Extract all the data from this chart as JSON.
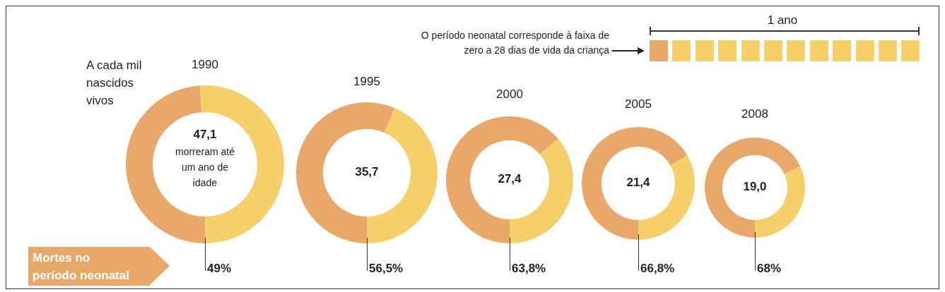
{
  "chart_data": [
    {
      "type": "donut",
      "title": "1990",
      "categories": [
        "Mortes no período neonatal",
        null
      ],
      "values": [
        49,
        51
      ],
      "colors": [
        "#e8a86a",
        "#f4cf6a"
      ],
      "value_labels": [
        "49%",
        null
      ],
      "annotations": [
        "47,1",
        "morreram até um ano de idade",
        "A cada mil nascidos vivos"
      ]
    },
    {
      "type": "donut",
      "title": "1995",
      "categories": [
        null,
        null
      ],
      "values": [
        56.5,
        43.5
      ],
      "colors": [
        "#e8a86a",
        "#f4cf6a"
      ],
      "value_labels": [
        "56,5%",
        null
      ],
      "annotations": [
        "35,7"
      ]
    },
    {
      "type": "donut",
      "title": "2000",
      "categories": [
        null,
        null
      ],
      "values": [
        63.8,
        36.2
      ],
      "colors": [
        "#e8a86a",
        "#f4cf6a"
      ],
      "value_labels": [
        "63,8%",
        null
      ],
      "annotations": [
        "27,4"
      ]
    },
    {
      "type": "donut",
      "title": "2005",
      "categories": [
        null,
        null
      ],
      "values": [
        66.8,
        33.2
      ],
      "colors": [
        "#e8a86a",
        "#f4cf6a"
      ],
      "value_labels": [
        "66,8%",
        null
      ],
      "annotations": [
        "21,4"
      ]
    },
    {
      "type": "donut",
      "title": "2008",
      "categories": [
        null,
        null
      ],
      "values": [
        68,
        32
      ],
      "colors": [
        "#e8a86a",
        "#f4cf6a"
      ],
      "value_labels": [
        "68%",
        null
      ],
      "annotations": [
        "19,0"
      ]
    },
    {
      "type": "other",
      "annotations": [
        "O período neonatal corresponde à faixa de zero a 28 dias de vida da criança",
        "1 ano"
      ]
    }
  ]
}
